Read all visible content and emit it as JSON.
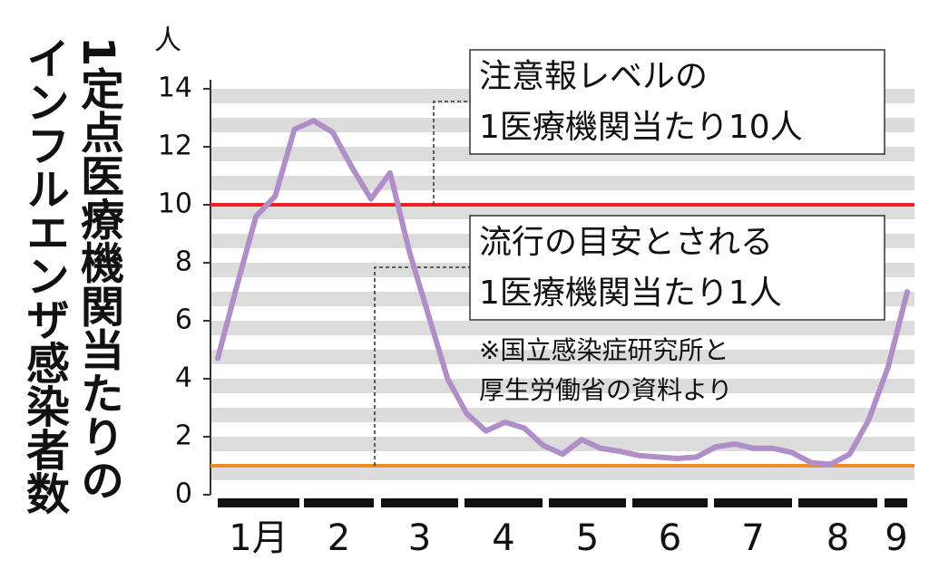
{
  "chart_data": {
    "type": "line",
    "title": [
      "1定点医療機関当たりの",
      "インフルエンザ感染者数"
    ],
    "y_unit": "人",
    "x_labels": [
      "1月",
      "2",
      "3",
      "4",
      "5",
      "6",
      "7",
      "8",
      "9"
    ],
    "series": [
      {
        "color": "#b08ec8",
        "values": [
          4.7,
          7.2,
          9.6,
          10.3,
          12.6,
          12.9,
          12.5,
          11.3,
          10.2,
          11.1,
          8.4,
          6.2,
          4.0,
          2.8,
          2.2,
          2.5,
          2.3,
          1.7,
          1.4,
          1.9,
          1.6,
          1.5,
          1.35,
          1.3,
          1.25,
          1.3,
          1.65,
          1.75,
          1.6,
          1.6,
          1.45,
          1.1,
          1.05,
          1.4,
          2.6,
          4.4,
          7.0
        ]
      }
    ],
    "ylim": [
      0,
      14
    ],
    "yticks": [
      0,
      2,
      4,
      6,
      8,
      10,
      12,
      14
    ],
    "reference_lines": [
      {
        "value": 10,
        "color": "#e8202a",
        "text": [
          "注意報レベルの",
          "1医療機関当たり10人"
        ]
      },
      {
        "value": 1,
        "color": "#f08a24",
        "text": [
          "流行の目安とされる",
          "1医療機関当たり1人"
        ]
      }
    ],
    "note": [
      "※国立感染症研究所と",
      "厚生労働省の資料より"
    ]
  }
}
